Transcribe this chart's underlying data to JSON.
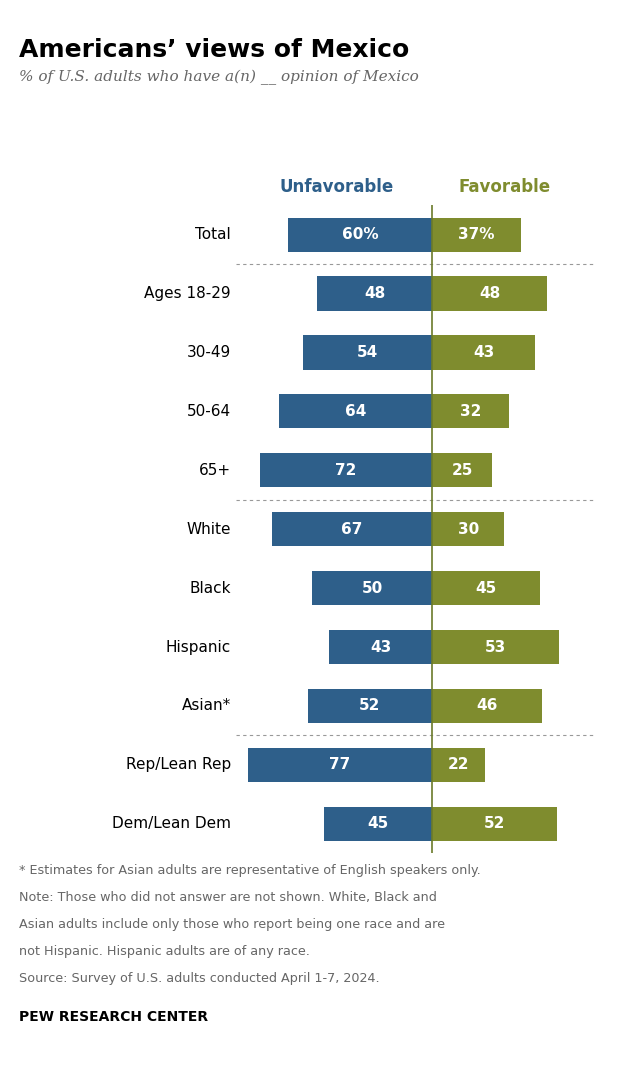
{
  "title": "Americans’ views of Mexico",
  "subtitle": "% of U.S. adults who have a(n) __ opinion of Mexico",
  "unfavorable_label": "Unfavorable",
  "favorable_label": "Favorable",
  "categories": [
    "Total",
    "Ages 18-29",
    "30-49",
    "50-64",
    "65+",
    "White",
    "Black",
    "Hispanic",
    "Asian*",
    "Rep/Lean Rep",
    "Dem/Lean Dem"
  ],
  "unfavorable": [
    60,
    48,
    54,
    64,
    72,
    67,
    50,
    43,
    52,
    77,
    45
  ],
  "favorable": [
    37,
    48,
    43,
    32,
    25,
    30,
    45,
    53,
    46,
    22,
    52
  ],
  "unfavorable_color": "#2E5F8A",
  "favorable_color": "#7F8C2E",
  "bar_height": 0.58,
  "center_line_color": "#6B7A2A",
  "divider_after_indices": [
    0,
    4,
    8
  ],
  "footnote_lines": [
    "* Estimates for Asian adults are representative of English speakers only.",
    "Note: Those who did not answer are not shown. White, Black and",
    "Asian adults include only those who report being one race and are",
    "not Hispanic. Hispanic adults are of any race.",
    "Source: Survey of U.S. adults conducted April 1-7, 2024."
  ],
  "source_label": "PEW RESEARCH CENTER",
  "unfavorable_label_color": "#2E5F8A",
  "favorable_label_color": "#7F8C2E",
  "text_color_white": "#ffffff",
  "background_color": "#ffffff",
  "max_unf": 80,
  "max_fav": 60
}
